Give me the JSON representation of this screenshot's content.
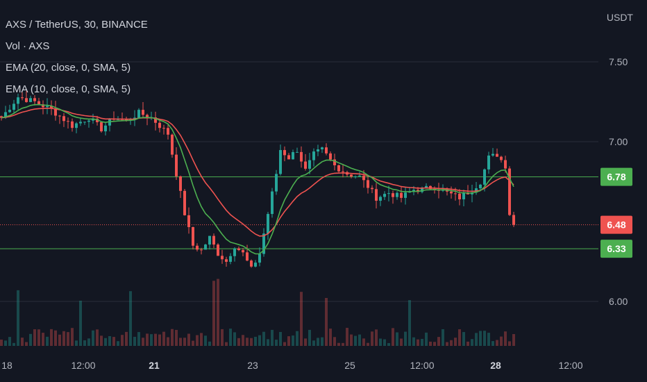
{
  "header": {
    "symbol_line": "AXS / TetherUS, 30, BINANCE",
    "volume_line": "Vol · AXS",
    "ema20_line": "EMA (20, close, 0, SMA, 5)",
    "ema10_line": "EMA (10, close, 0, SMA, 5)"
  },
  "colors": {
    "background": "#131722",
    "up": "#26a69a",
    "down": "#ef5350",
    "ema_green": "#4caf50",
    "ema_red": "#ef5350",
    "level_line": "#4caf50",
    "grid": "#2a2e39"
  },
  "chart_data": {
    "type": "candlestick",
    "quote_currency": "USDT",
    "ylim": [
      5.95,
      7.75
    ],
    "y_ticks": [
      {
        "value": 7.5,
        "label": "7.50"
      },
      {
        "value": 7.0,
        "label": "7.00"
      },
      {
        "value": 6.0,
        "label": "6.00"
      }
    ],
    "x_ticks": [
      {
        "label": "18",
        "bold": false
      },
      {
        "label": "12:00",
        "bold": false
      },
      {
        "label": "21",
        "bold": true
      },
      {
        "label": "23",
        "bold": false
      },
      {
        "label": "25",
        "bold": false
      },
      {
        "label": "12:00",
        "bold": false
      },
      {
        "label": "28",
        "bold": true
      },
      {
        "label": "12:00",
        "bold": false
      }
    ],
    "horizontal_levels": [
      {
        "value": 6.78,
        "label": "6.78",
        "color": "#4caf50"
      },
      {
        "value": 6.33,
        "label": "6.33",
        "color": "#4caf50"
      }
    ],
    "last_price": {
      "value": 6.48,
      "label": "6.48",
      "color": "#ef5350"
    },
    "price_path": [
      [
        0,
        7.15
      ],
      [
        4,
        7.28
      ],
      [
        8,
        7.25
      ],
      [
        12,
        7.2
      ],
      [
        17,
        7.1
      ],
      [
        21,
        7.15
      ],
      [
        24,
        7.08
      ],
      [
        27,
        7.15
      ],
      [
        30,
        7.13
      ],
      [
        33,
        7.18
      ],
      [
        36,
        7.15
      ],
      [
        38,
        7.1
      ],
      [
        40,
        7.05
      ],
      [
        42,
        6.8
      ],
      [
        44,
        6.55
      ],
      [
        46,
        6.35
      ],
      [
        48,
        6.32
      ],
      [
        50,
        6.4
      ],
      [
        52,
        6.3
      ],
      [
        54,
        6.25
      ],
      [
        56,
        6.35
      ],
      [
        58,
        6.3
      ],
      [
        60,
        6.2
      ],
      [
        62,
        6.3
      ],
      [
        64,
        6.55
      ],
      [
        66,
        6.8
      ],
      [
        67,
        6.95
      ],
      [
        69,
        6.9
      ],
      [
        71,
        6.95
      ],
      [
        73,
        6.82
      ],
      [
        75,
        6.92
      ],
      [
        77,
        6.95
      ],
      [
        80,
        6.85
      ],
      [
        83,
        6.8
      ],
      [
        86,
        6.78
      ],
      [
        88,
        6.72
      ],
      [
        90,
        6.65
      ],
      [
        93,
        6.68
      ],
      [
        96,
        6.65
      ],
      [
        99,
        6.7
      ],
      [
        101,
        6.7
      ],
      [
        104,
        6.72
      ],
      [
        107,
        6.68
      ],
      [
        110,
        6.65
      ],
      [
        113,
        6.7
      ],
      [
        115,
        6.75
      ],
      [
        117,
        6.9
      ],
      [
        119,
        6.92
      ],
      [
        121,
        6.85
      ],
      [
        122,
        6.55
      ],
      [
        123,
        6.48
      ]
    ]
  }
}
